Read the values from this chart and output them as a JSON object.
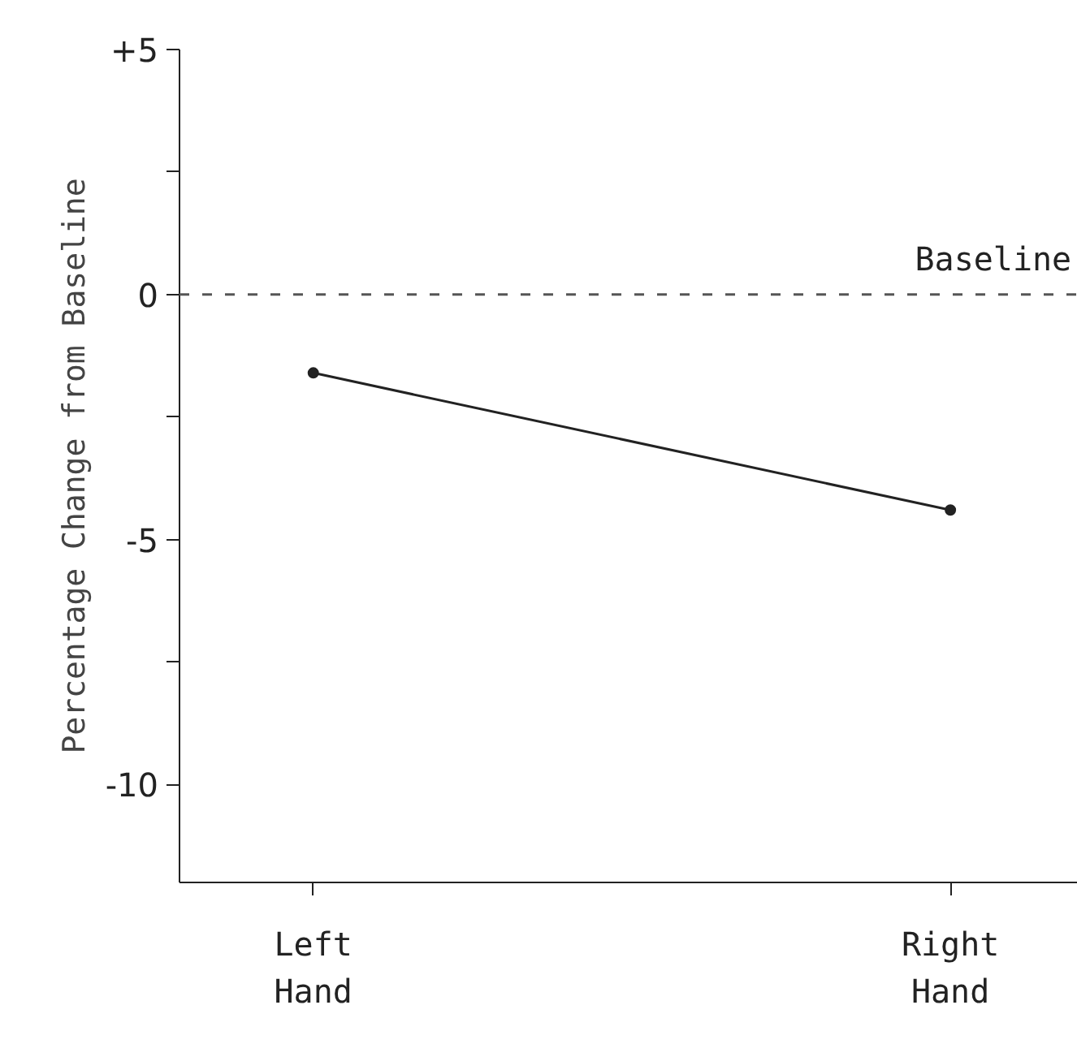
{
  "chart_data": {
    "type": "line",
    "ylabel": "Percentage Change from Baseline",
    "categories": [
      "Left\nHand",
      "Right\nHand"
    ],
    "series": [
      {
        "color": "#222222",
        "values": [
          -1.6,
          -4.4
        ]
      }
    ],
    "ylim": [
      -12,
      5
    ],
    "yticks": [
      {
        "value": 5,
        "label": "+5"
      },
      {
        "value": 2.5,
        "label": null
      },
      0,
      {
        "value": -2.5,
        "label": null
      },
      -5,
      {
        "value": -7.5,
        "label": null
      },
      -10
    ],
    "ref_lines": [
      {
        "axis": "y",
        "value": 0,
        "label": "Baseline",
        "line_style": "dashed",
        "color": "#555555"
      }
    ],
    "marker": "circle",
    "line_style": "solid",
    "grid": false
  }
}
